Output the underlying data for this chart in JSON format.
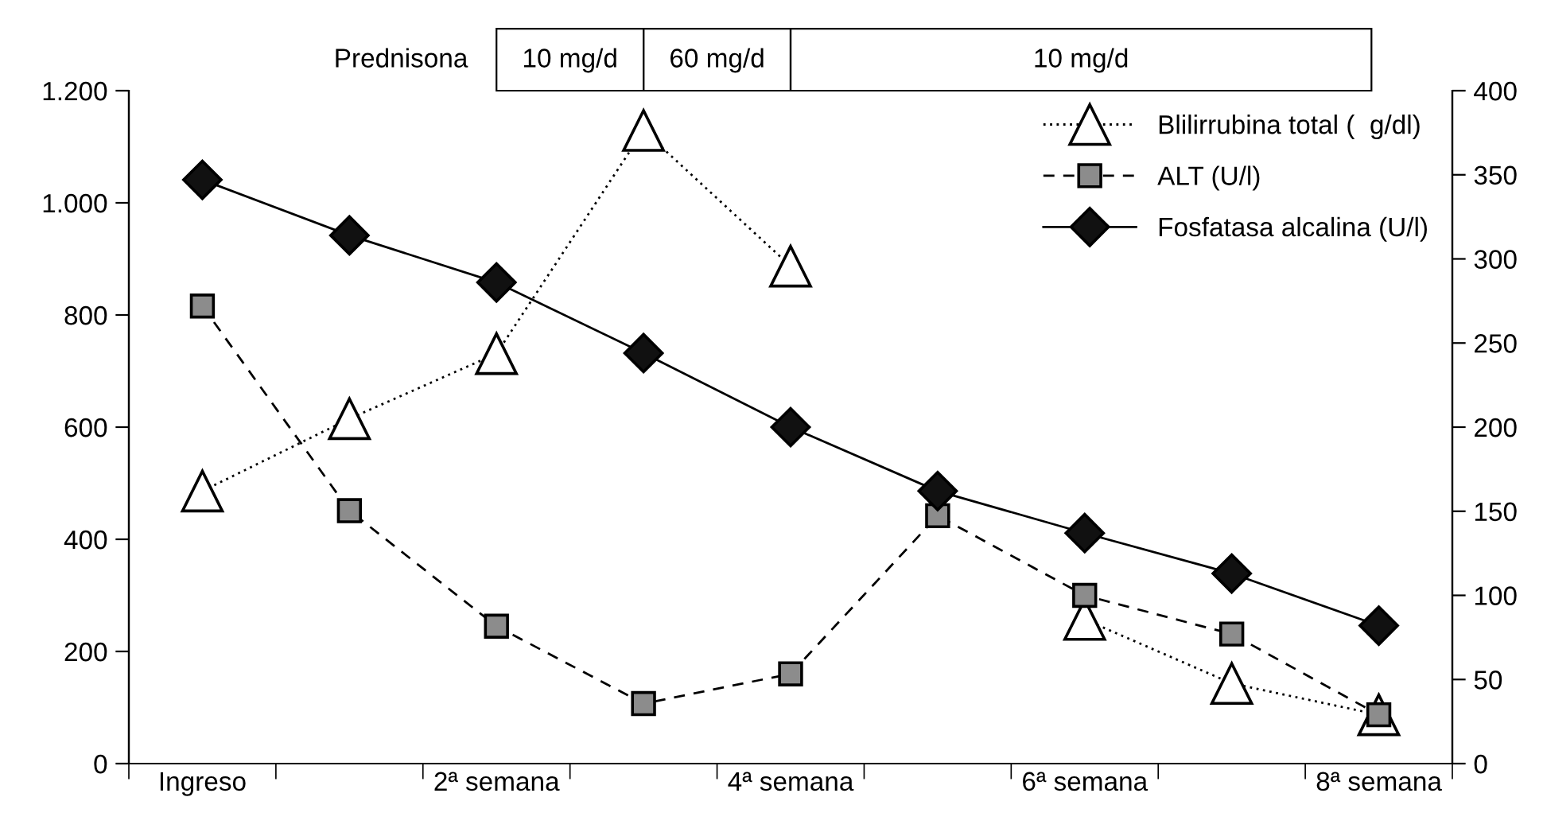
{
  "chart_data": {
    "type": "line",
    "categories": [
      "Ingreso",
      null,
      "2ª semana",
      null,
      "4ª semana",
      null,
      "6ª semana",
      null,
      "8ª semana"
    ],
    "series": [
      {
        "name": "Blilirrubina total (  g/dl)",
        "color": "#ffffff",
        "marker": "triangle",
        "line_style": "dotted",
        "values": [
          486,
          615,
          731,
          1129,
          887,
          null,
          257,
          143,
          87
        ]
      },
      {
        "name": "ALT (U/l)",
        "color": "#8c8c8c",
        "marker": "square",
        "line_style": "dashed",
        "values": [
          816,
          451,
          245,
          107,
          160,
          442,
          300,
          231,
          87
        ]
      },
      {
        "name": "Fosfatasa alcalina (U/l)",
        "color": "#111111",
        "marker": "diamond",
        "line_style": "solid",
        "axis": "y2",
        "values": [
          347,
          314,
          286,
          244,
          200,
          162,
          137,
          113,
          82
        ]
      }
    ],
    "ylim": [
      0,
      1200
    ],
    "yticks": [
      0,
      200,
      400,
      600,
      800,
      {
        "value": 1000,
        "label": "1.000"
      },
      {
        "value": 1200,
        "label": "1.200"
      }
    ],
    "y2lim": [
      0,
      400
    ],
    "y2ticks": [
      0,
      50,
      100,
      150,
      200,
      250,
      300,
      350,
      400
    ],
    "annotations": [
      "Prednisona",
      "10 mg/d",
      "60 mg/d",
      "10 mg/d"
    ],
    "legend": "top right",
    "grid": false
  }
}
